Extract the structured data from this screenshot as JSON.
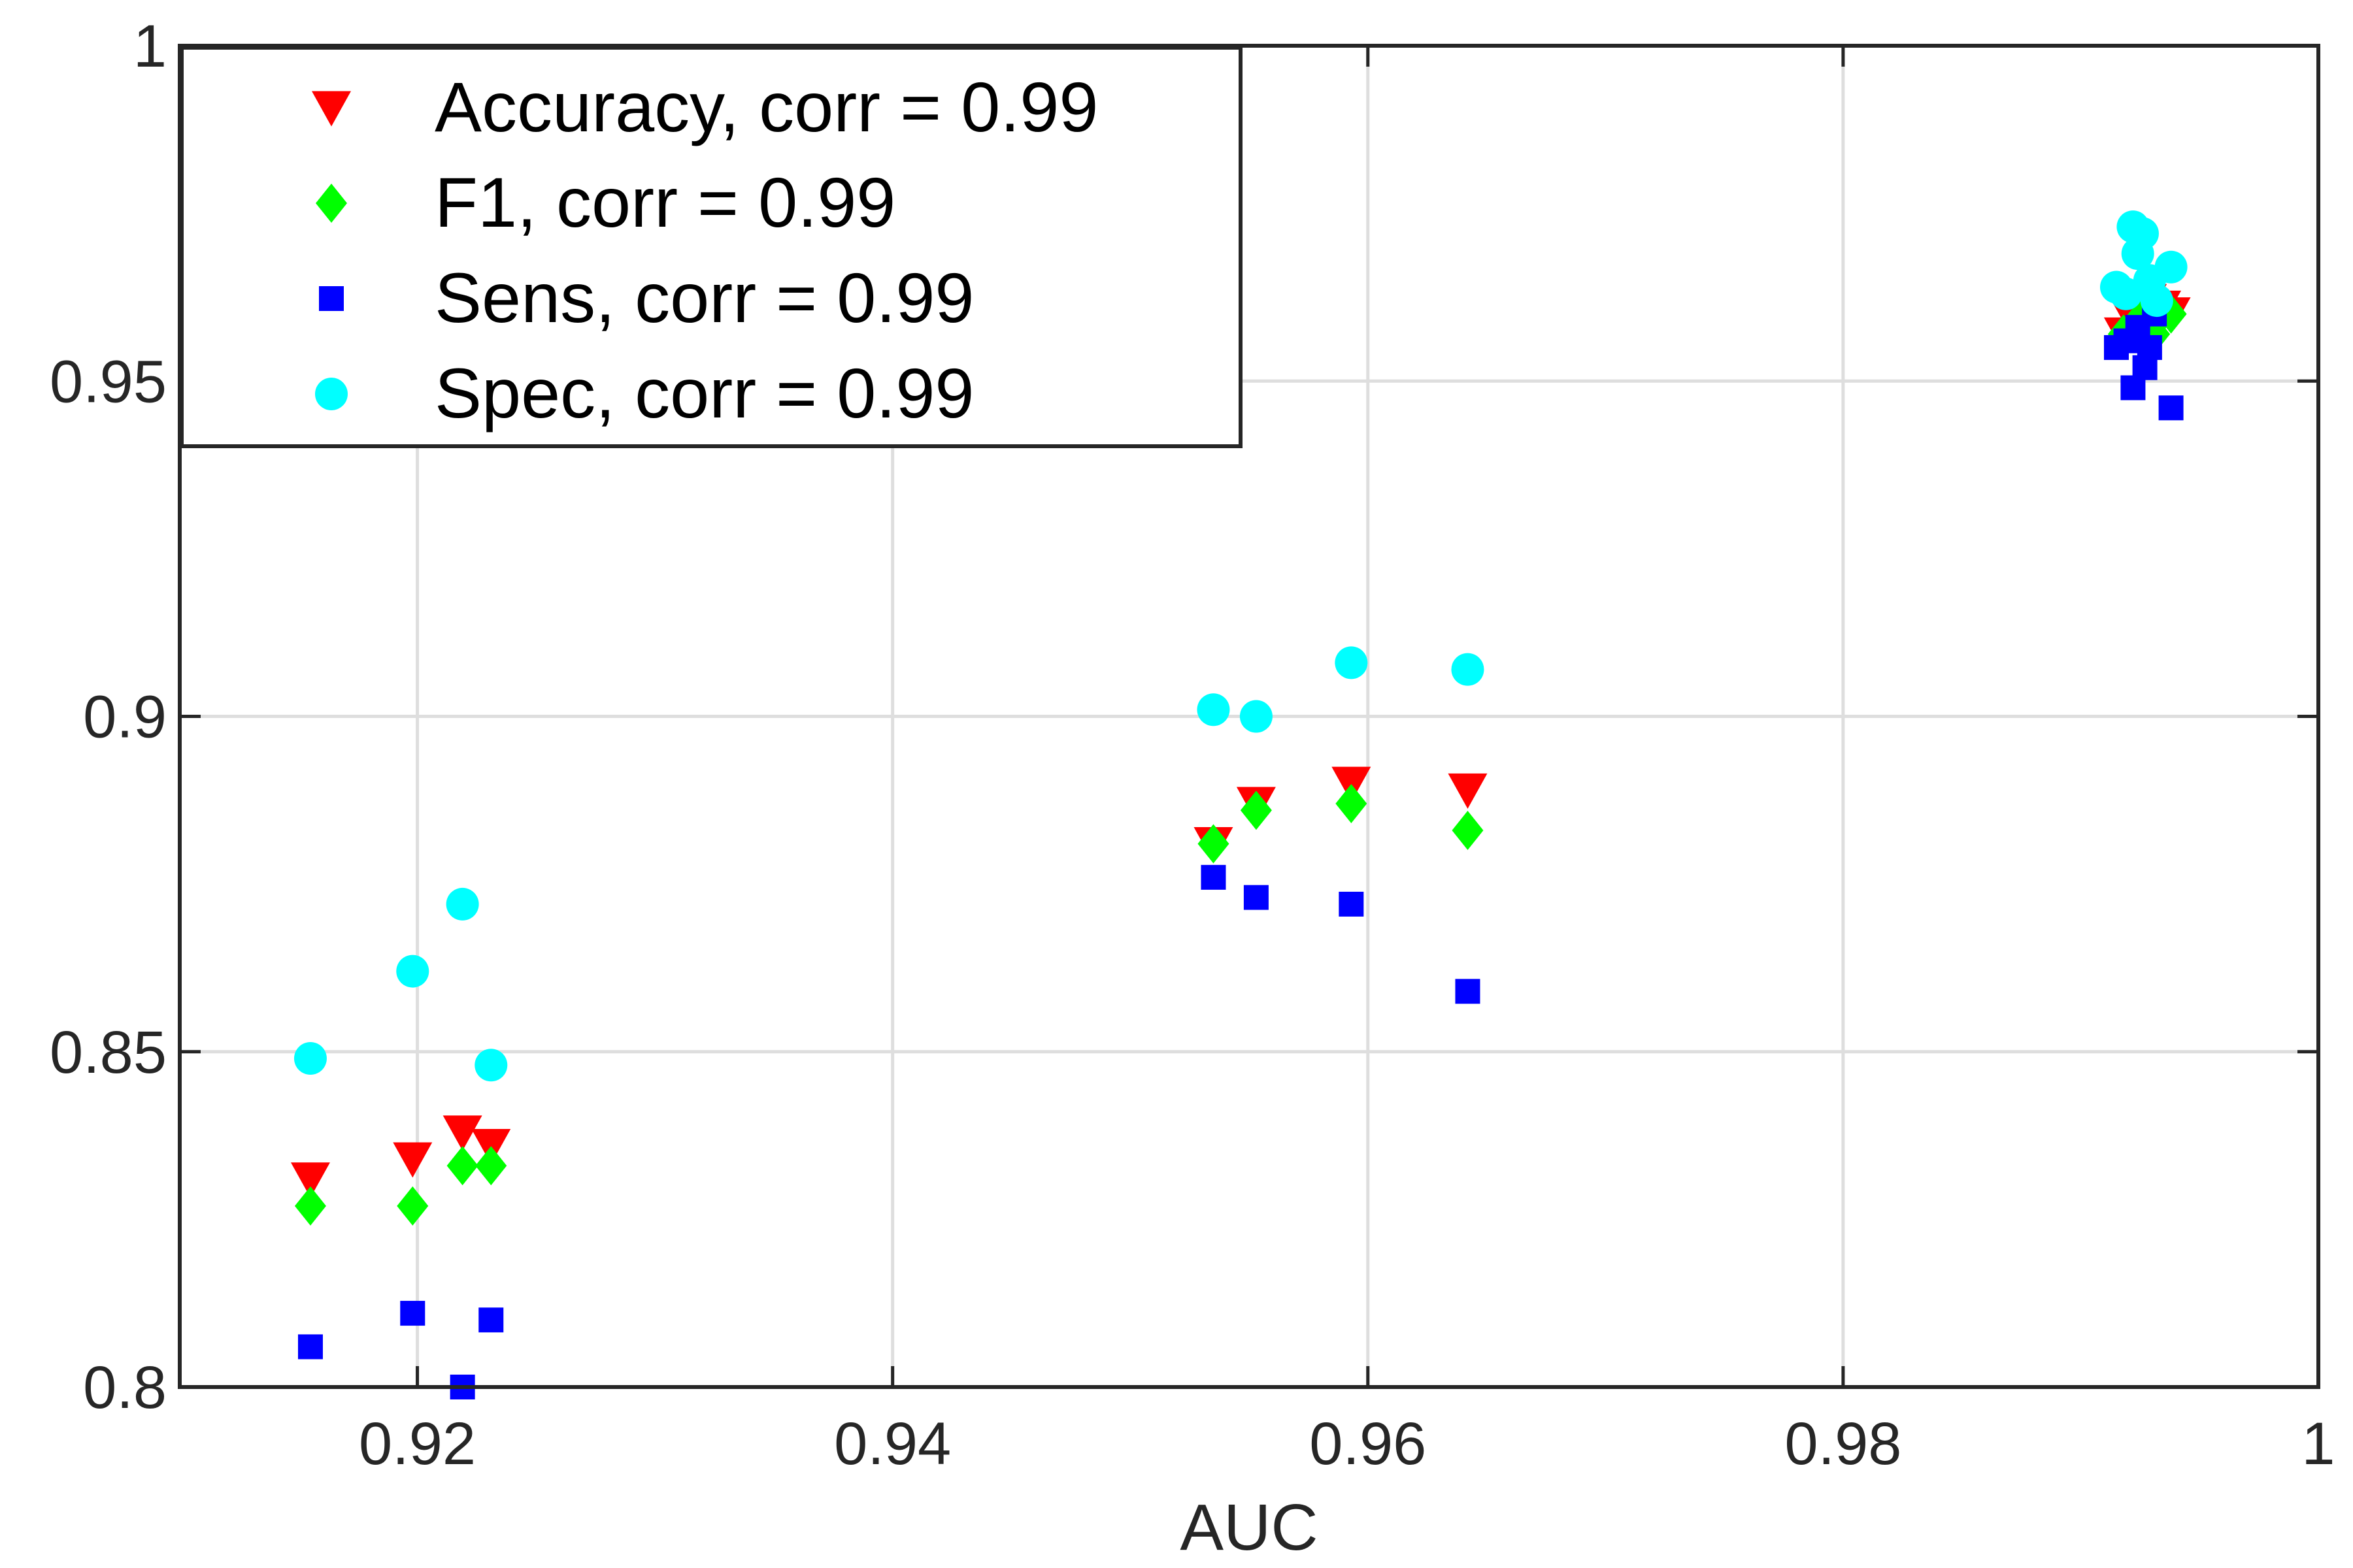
{
  "chart_data": {
    "type": "scatter",
    "title": "",
    "xlabel": "AUC",
    "ylabel": "",
    "xlim": [
      0.91,
      1.0
    ],
    "ylim": [
      0.8,
      1.0
    ],
    "xticks": [
      0.92,
      0.94,
      0.96,
      0.98,
      1.0
    ],
    "xtick_labels": [
      "0.92",
      "0.94",
      "0.96",
      "0.98",
      "1"
    ],
    "yticks": [
      0.8,
      0.85,
      0.9,
      0.95,
      1.0
    ],
    "ytick_labels": [
      "0.8",
      "0.85",
      "0.9",
      "0.95",
      "1"
    ],
    "grid": true,
    "legend_position": "top-left",
    "series": [
      {
        "name": "Accuracy, corr = 0.99",
        "marker": "triangle-down",
        "color": "#ff0000",
        "x": [
          0.9155,
          0.9198,
          0.9219,
          0.9231,
          0.9535,
          0.9553,
          0.9593,
          0.9642,
          0.9918,
          0.9922,
          0.9925,
          0.9928,
          0.9931,
          0.9934,
          0.9938
        ],
        "y": [
          0.831,
          0.834,
          0.838,
          0.836,
          0.881,
          0.887,
          0.89,
          0.889,
          0.957,
          0.959,
          0.96,
          0.962,
          0.958,
          0.961,
          0.96
        ]
      },
      {
        "name": "F1, corr = 0.99",
        "marker": "diamond",
        "color": "#00ff00",
        "x": [
          0.9155,
          0.9198,
          0.9219,
          0.9231,
          0.9535,
          0.9553,
          0.9593,
          0.9642,
          0.9918,
          0.9922,
          0.9925,
          0.9928,
          0.9931,
          0.9934,
          0.9938
        ],
        "y": [
          0.827,
          0.827,
          0.833,
          0.833,
          0.881,
          0.886,
          0.887,
          0.883,
          0.957,
          0.958,
          0.959,
          0.961,
          0.957,
          0.96,
          0.96
        ]
      },
      {
        "name": "Sens, corr = 0.99",
        "marker": "square",
        "color": "#0000ff",
        "x": [
          0.9155,
          0.9198,
          0.9219,
          0.9231,
          0.9535,
          0.9553,
          0.9593,
          0.9642,
          0.9915,
          0.9919,
          0.9922,
          0.9924,
          0.9927,
          0.9929,
          0.9931,
          0.9938
        ],
        "y": [
          0.806,
          0.811,
          0.8,
          0.81,
          0.876,
          0.873,
          0.872,
          0.859,
          0.955,
          0.956,
          0.949,
          0.958,
          0.952,
          0.955,
          0.96,
          0.946
        ]
      },
      {
        "name": "Spec, corr = 0.99",
        "marker": "circle",
        "color": "#00ffff",
        "x": [
          0.9155,
          0.9198,
          0.9219,
          0.9231,
          0.9535,
          0.9553,
          0.9593,
          0.9642,
          0.9915,
          0.9919,
          0.9922,
          0.9924,
          0.9926,
          0.9929,
          0.9932,
          0.9938
        ],
        "y": [
          0.849,
          0.862,
          0.872,
          0.848,
          0.901,
          0.9,
          0.908,
          0.907,
          0.964,
          0.963,
          0.973,
          0.969,
          0.972,
          0.965,
          0.962,
          0.967
        ]
      }
    ]
  }
}
